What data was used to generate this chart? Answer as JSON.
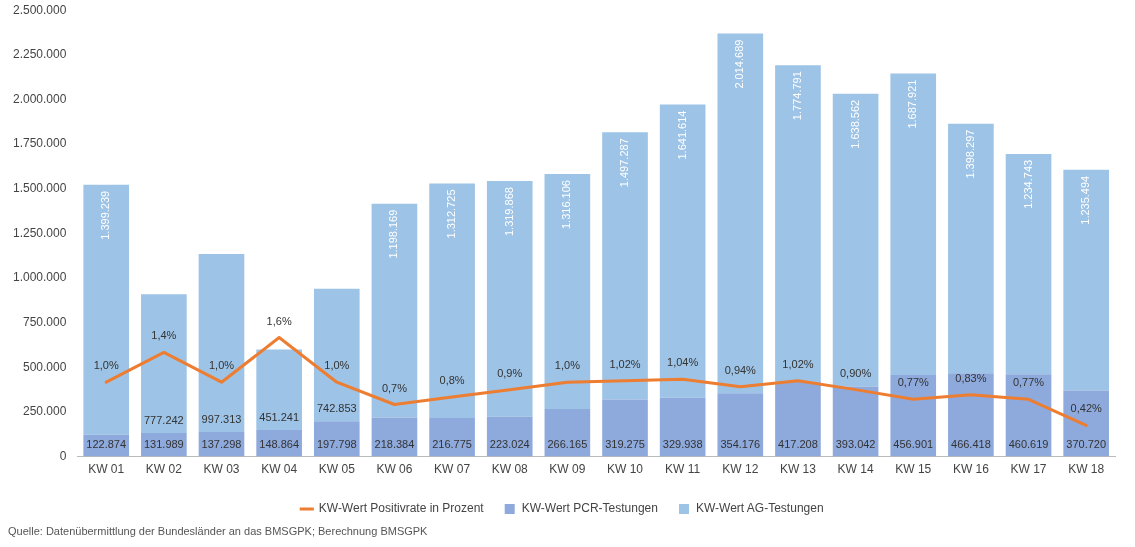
{
  "chart_data": {
    "type": "bar",
    "stacked": true,
    "categories": [
      "KW 01",
      "KW 02",
      "KW 03",
      "KW 04",
      "KW 05",
      "KW 06",
      "KW 07",
      "KW 08",
      "KW 09",
      "KW 10",
      "KW 11",
      "KW 12",
      "KW 13",
      "KW 14",
      "KW 15",
      "KW 16",
      "KW 17",
      "KW 18"
    ],
    "series": [
      {
        "name": "KW-Wert PCR-Testungen",
        "color": "#8eaadc",
        "values": [
          122874,
          131989,
          137298,
          148864,
          197798,
          218384,
          216775,
          223024,
          266165,
          319275,
          329938,
          354176,
          417208,
          393042,
          456901,
          466418,
          460619,
          370720
        ],
        "value_labels": [
          "122.874",
          "131.989",
          "137.298",
          "148.864",
          "197.798",
          "218.384",
          "216.775",
          "223.024",
          "266.165",
          "319.275",
          "329.938",
          "354.176",
          "417.208",
          "393.042",
          "456.901",
          "466.418",
          "460.619",
          "370.720"
        ]
      },
      {
        "name": "KW-Wert AG-Testungen",
        "color": "#9dc3e6",
        "values": [
          1399239,
          777242,
          997313,
          451241,
          742853,
          1198169,
          1312725,
          1319868,
          1316106,
          1497287,
          1641614,
          2014689,
          1774791,
          1638562,
          1687921,
          1398297,
          1234743,
          1235494
        ],
        "value_labels": [
          "1.399.239",
          "777.242",
          "997.313",
          "451.241",
          "742.853",
          "1.198.169",
          "1.312.725",
          "1.319.868",
          "1.316.106",
          "1.497.287",
          "1.641.614",
          "2.014.689",
          "1.774.791",
          "1.638.562",
          "1.687.921",
          "1.398.297",
          "1.234.743",
          "1.235.494"
        ]
      },
      {
        "name": "KW-Wert Positivrate in Prozent",
        "type": "line",
        "axis": "y2",
        "color": "#ed7d31",
        "marker": "none",
        "values": [
          1.0,
          1.4,
          1.0,
          1.6,
          1.0,
          0.7,
          0.8,
          0.9,
          1.0,
          1.02,
          1.04,
          0.94,
          1.02,
          0.9,
          0.77,
          0.83,
          0.77,
          0.42
        ],
        "value_labels": [
          "1,0%",
          "1,4%",
          "1,0%",
          "1,6%",
          "1,0%",
          "0,7%",
          "0,8%",
          "0,9%",
          "1,0%",
          "1,02%",
          "1,04%",
          "0,94%",
          "1,02%",
          "0,90%",
          "0,77%",
          "0,83%",
          "0,77%",
          "0,42%"
        ]
      }
    ],
    "ylim": [
      0,
      2500000
    ],
    "yticks": [
      {
        "value": 0,
        "label": "0"
      },
      {
        "value": 250000,
        "label": "250.000"
      },
      {
        "value": 500000,
        "label": "500.000"
      },
      {
        "value": 750000,
        "label": "750.000"
      },
      {
        "value": 1000000,
        "label": "1.000.000"
      },
      {
        "value": 1250000,
        "label": "1.250.000"
      },
      {
        "value": 1500000,
        "label": "1.500.000"
      },
      {
        "value": 1750000,
        "label": "1.750.000"
      },
      {
        "value": 2000000,
        "label": "2.000.000"
      },
      {
        "value": 2250000,
        "label": "2.250.000"
      },
      {
        "value": 2500000,
        "label": "2.500.000"
      }
    ],
    "legend": "bottom",
    "grid": false,
    "annotations": [
      "Quelle: Datenübermittlung der Bundesländer an das BMSGPK; Berechnung BMSGPK"
    ]
  }
}
